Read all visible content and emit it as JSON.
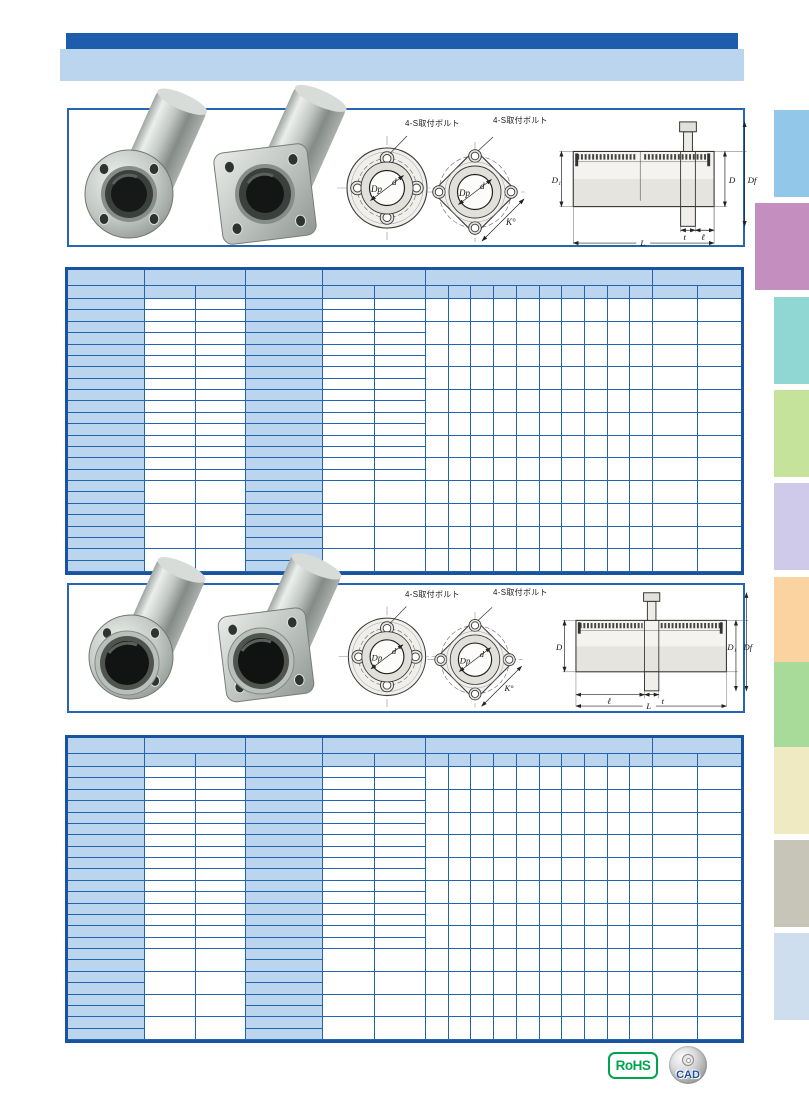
{
  "colors": {
    "bar_dark_blue": "#1d5dac",
    "light_blue_fill": "#bcd5ee",
    "table_line_blue": "#2264b0",
    "table_border_blue": "#17539f",
    "panel_border_blue": "#2565b4",
    "rohs_green": "#00a44f",
    "cad_text_blue": "#1a4fa0"
  },
  "panel1": {
    "description": "rear-flange linear bushings (round flange and square flange)",
    "labels": {
      "bolt_round": "4-S取付ボルト",
      "bolt_square": "4-S取付ボルト",
      "dp": "Dp",
      "d": "d",
      "k": "K°",
      "d1": "D₁",
      "D": "D",
      "df": "Df",
      "t": "t",
      "ell": "ℓ",
      "L": "L"
    }
  },
  "panel2": {
    "description": "center-flange linear bushings (round flange and square flange)",
    "labels": {
      "bolt_round": "4-S取付ボルト",
      "bolt_square": "4-S取付ボルト",
      "dp": "Dp",
      "d": "d",
      "k": "K°",
      "D": "D",
      "d1": "D₁",
      "df": "Df",
      "ell": "ℓ",
      "t": "t",
      "L": "L"
    }
  },
  "tables": {
    "note": "two identical empty specification grids, header rows and model columns shaded blue",
    "header_rows": 2,
    "data_rows": 24
  },
  "sidebar": {
    "tabs": [
      {
        "name": "tab-01",
        "color": "#93c7ea",
        "active": false
      },
      {
        "name": "tab-02",
        "color": "#c48fbe",
        "active": true
      },
      {
        "name": "tab-03",
        "color": "#90d7d3",
        "active": false
      },
      {
        "name": "tab-04",
        "color": "#c6e39b",
        "active": false
      },
      {
        "name": "tab-05",
        "color": "#cfc9ea",
        "active": false
      },
      {
        "name": "tab-06",
        "color": "#fbd3a1",
        "active": false
      },
      {
        "name": "tab-07",
        "color": "#a8db9a",
        "active": false
      },
      {
        "name": "tab-08",
        "color": "#efeac1",
        "active": false
      },
      {
        "name": "tab-09",
        "color": "#c6c5b7",
        "active": false
      },
      {
        "name": "tab-10",
        "color": "#cfdeee",
        "active": false
      }
    ]
  },
  "badges": {
    "rohs": "RoHS",
    "cad": "CAD"
  }
}
